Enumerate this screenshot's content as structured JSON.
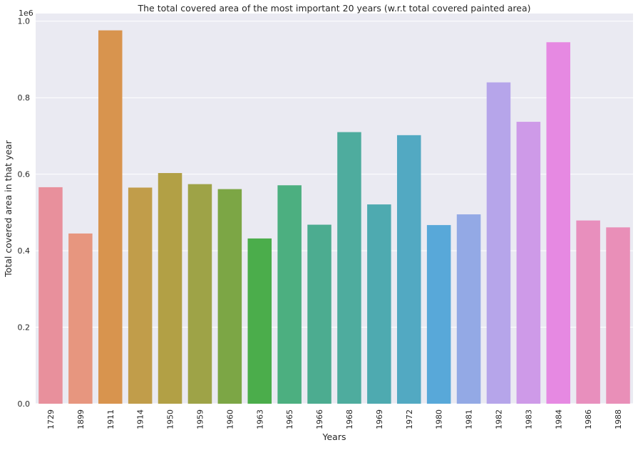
{
  "chart_data": {
    "type": "bar",
    "title": "The total covered area of the most important 20 years (w.r.t total covered painted area)",
    "xlabel": "Years",
    "ylabel": "Total covered area in that year",
    "y_scale_label": "1e6",
    "ylim": [
      0,
      1.02
    ],
    "yticks": [
      0.0,
      0.2,
      0.4,
      0.6,
      0.8,
      1.0
    ],
    "ytick_labels": [
      "0.0",
      "0.2",
      "0.4",
      "0.6",
      "0.8",
      "1.0"
    ],
    "grid": true,
    "categories": [
      "1729",
      "1899",
      "1911",
      "1914",
      "1950",
      "1959",
      "1960",
      "1963",
      "1965",
      "1966",
      "1968",
      "1969",
      "1972",
      "1980",
      "1981",
      "1982",
      "1983",
      "1984",
      "1986",
      "1988"
    ],
    "values": [
      0.566,
      0.445,
      0.976,
      0.565,
      0.603,
      0.574,
      0.561,
      0.432,
      0.571,
      0.468,
      0.71,
      0.521,
      0.702,
      0.467,
      0.495,
      0.84,
      0.737,
      0.945,
      0.479,
      0.461
    ],
    "colors": [
      "#e8909c",
      "#e7967f",
      "#d8944e",
      "#c19d4a",
      "#b2a045",
      "#9ea347",
      "#7ca645",
      "#4bad4b",
      "#4caf80",
      "#4cac90",
      "#4eac9e",
      "#4eaab0",
      "#52a9c2",
      "#58a8d9",
      "#93a9e5",
      "#b6a5ea",
      "#ce9ae8",
      "#e689e2",
      "#e88fbd",
      "#e98fb8"
    ]
  }
}
